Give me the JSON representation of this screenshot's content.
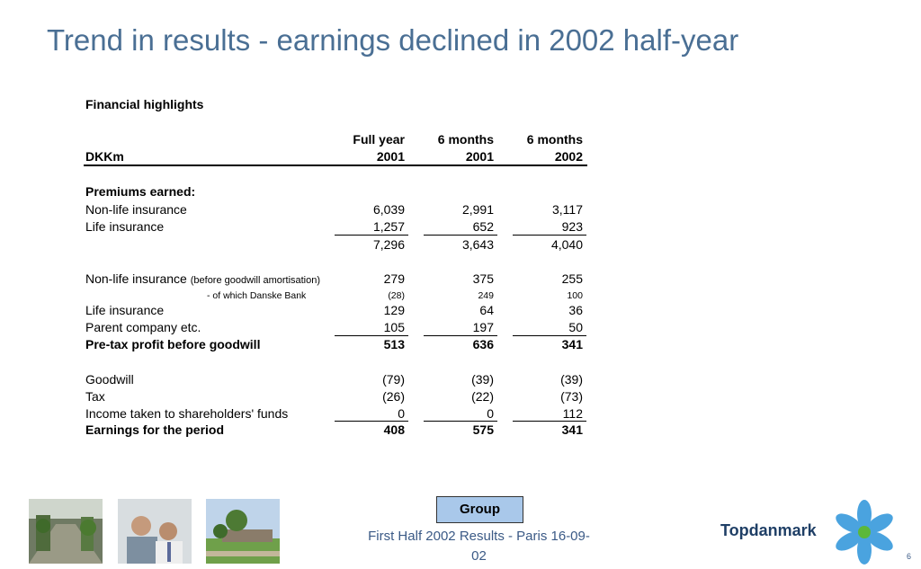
{
  "title": "Trend in results - earnings declined in 2002 half-year",
  "section_title": "Financial highlights",
  "table": {
    "columns": [
      {
        "line1": "Full year",
        "line2": "2001"
      },
      {
        "line1": "6 months",
        "line2": "2001"
      },
      {
        "line1": "6 months",
        "line2": "2002"
      }
    ],
    "unit_label": "DKKm",
    "premiums_heading": "Premiums earned:",
    "rows": {
      "nonlife_prem": {
        "label": "Non-life insurance",
        "values": [
          "6,039",
          "2,991",
          "3,117"
        ]
      },
      "life_prem": {
        "label": "Life insurance",
        "values": [
          "1,257",
          "652",
          "923"
        ]
      },
      "prem_total": {
        "values": [
          "7,296",
          "3,643",
          "4,040"
        ]
      },
      "nonlife_profit": {
        "label": "Non-life insurance",
        "note": "(before goodwill amortisation)",
        "values": [
          "279",
          "375",
          "255"
        ]
      },
      "danske": {
        "label": "- of which Danske Bank",
        "values": [
          "(28)",
          "249",
          "100"
        ]
      },
      "life_profit": {
        "label": "Life insurance",
        "values": [
          "129",
          "64",
          "36"
        ]
      },
      "parent": {
        "label": "Parent company etc.",
        "values": [
          "105",
          "197",
          "50"
        ]
      },
      "pretax": {
        "label": "Pre-tax profit before goodwill",
        "values": [
          "513",
          "636",
          "341"
        ]
      },
      "goodwill": {
        "label": "Goodwill",
        "values": [
          "(79)",
          "(39)",
          "(39)"
        ]
      },
      "tax": {
        "label": "Tax",
        "values": [
          "(26)",
          "(22)",
          "(73)"
        ]
      },
      "income": {
        "label": "Income taken to shareholders' funds",
        "values": [
          "0",
          "0",
          "112"
        ]
      },
      "earnings": {
        "label": "Earnings for the period",
        "values": [
          "408",
          "575",
          "341"
        ]
      }
    }
  },
  "group_button": "Group",
  "footer": {
    "line1": "First Half 2002 Results - Paris 16-09-",
    "line2": "02"
  },
  "logo_text": "Topdanmark",
  "page_number": "6",
  "colors": {
    "title": "#4a6f94",
    "button_bg": "#a9c8ea",
    "logo_blue": "#4aa3df",
    "logo_green": "#5cb83a"
  }
}
